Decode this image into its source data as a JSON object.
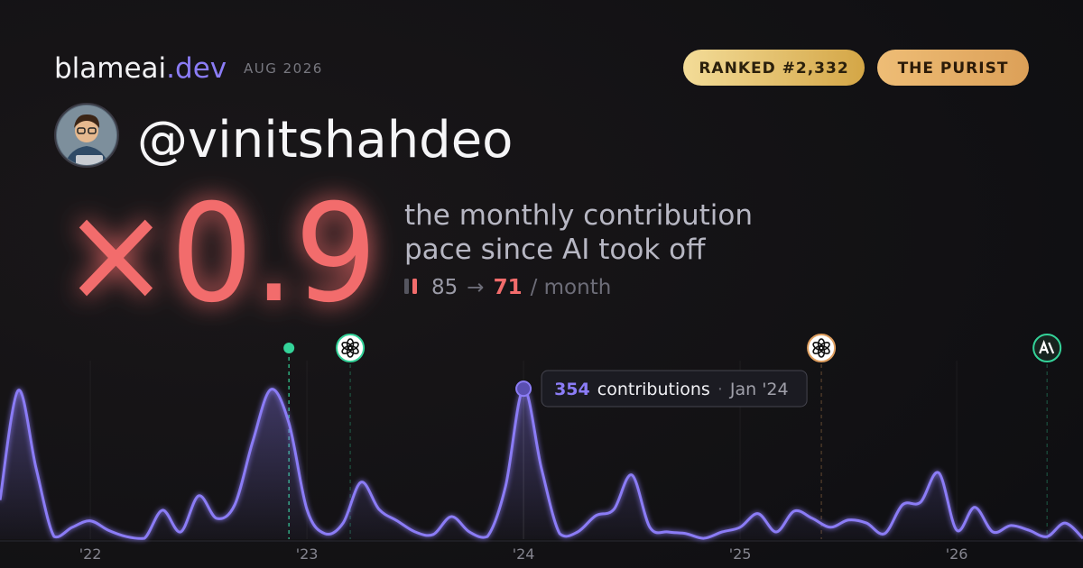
{
  "header": {
    "brand": "blameai",
    "brand_tld": ".dev",
    "date": "AUG 2026",
    "badges": [
      "RANKED #2,332",
      "THE PURIST"
    ]
  },
  "profile": {
    "handle": "@vinitshahdeo"
  },
  "stat": {
    "multiplier": "×0.9",
    "description_lines": [
      "the monthly contribution",
      "pace since AI took off"
    ],
    "before": 85,
    "arrow": "→",
    "after": 71,
    "unit": "/ month"
  },
  "chart_data": {
    "type": "area",
    "x": [
      2021.583,
      2021.667,
      2021.75,
      2021.833,
      2021.917,
      2022,
      2022.083,
      2022.167,
      2022.25,
      2022.333,
      2022.417,
      2022.5,
      2022.583,
      2022.667,
      2022.75,
      2022.833,
      2022.917,
      2023,
      2023.083,
      2023.167,
      2023.25,
      2023.333,
      2023.417,
      2023.5,
      2023.583,
      2023.667,
      2023.75,
      2023.833,
      2023.917,
      2024,
      2024.083,
      2024.167,
      2024.25,
      2024.333,
      2024.417,
      2024.5,
      2024.583,
      2024.667,
      2024.75,
      2024.833,
      2024.917,
      2025,
      2025.083,
      2025.167,
      2025.25,
      2025.333,
      2025.417,
      2025.5,
      2025.583,
      2025.667,
      2025.75,
      2025.833,
      2025.917,
      2026,
      2026.083,
      2026.167,
      2026.25,
      2026.333,
      2026.417,
      2026.5,
      2026.583
    ],
    "values": [
      92,
      350,
      166,
      6,
      28,
      43,
      21,
      6,
      2,
      68,
      17,
      102,
      49,
      81,
      230,
      352,
      273,
      70,
      13,
      38,
      134,
      70,
      43,
      17,
      11,
      53,
      17,
      6,
      124,
      354,
      166,
      13,
      17,
      55,
      70,
      151,
      28,
      17,
      13,
      2,
      17,
      28,
      60,
      17,
      66,
      49,
      28,
      45,
      38,
      13,
      81,
      87,
      156,
      21,
      75,
      17,
      32,
      21,
      6,
      38,
      2
    ],
    "color": "#8b7cf6",
    "xlim": [
      2021.583,
      2026.583
    ],
    "ylim": [
      0,
      420
    ],
    "xticks": [
      {
        "value": 2022,
        "label": "'22"
      },
      {
        "value": 2023,
        "label": "'23"
      },
      {
        "value": 2024,
        "label": "'24"
      },
      {
        "value": 2025,
        "label": "'25"
      },
      {
        "value": 2026,
        "label": "'26"
      }
    ],
    "grid": true,
    "markers": [
      {
        "x": 2022.917,
        "style": "dot",
        "color": "#34d399"
      },
      {
        "x": 2023.2,
        "style": "openai",
        "color": "#34d399"
      },
      {
        "x": 2025.375,
        "style": "openai",
        "color": "#e0a060"
      },
      {
        "x": 2026.417,
        "style": "anthropic",
        "color": "#34d399"
      }
    ],
    "tooltip": {
      "x": 2024,
      "label": "contributions",
      "separator": "·",
      "date": "Jan '24"
    }
  }
}
